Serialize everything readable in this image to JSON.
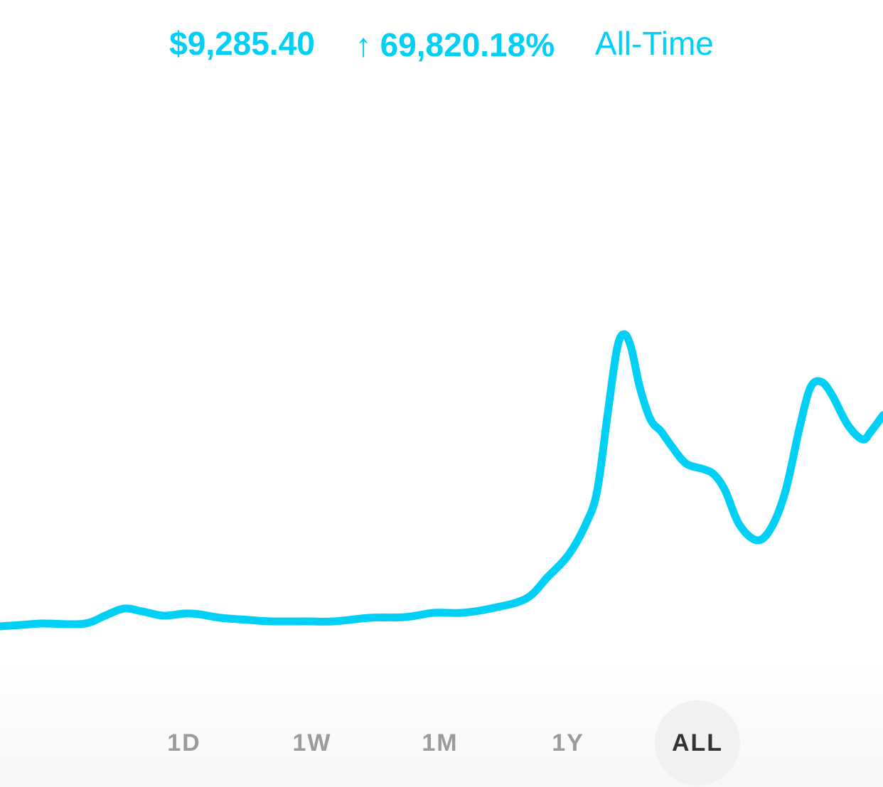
{
  "header": {
    "price": "$9,285.40",
    "change_icon": "arrow-up-icon",
    "change_arrow": "↑",
    "change_percent": "69,820.18%",
    "period_label": "All-Time"
  },
  "colors": {
    "accent": "#00d0f5",
    "range_inactive": "#9b9b9b",
    "range_active": "#333333",
    "range_active_bg": "#f1f1f1"
  },
  "ranges": [
    {
      "label": "1D",
      "active": false
    },
    {
      "label": "1W",
      "active": false
    },
    {
      "label": "1M",
      "active": false
    },
    {
      "label": "1Y",
      "active": false
    },
    {
      "label": "ALL",
      "active": true
    }
  ]
}
